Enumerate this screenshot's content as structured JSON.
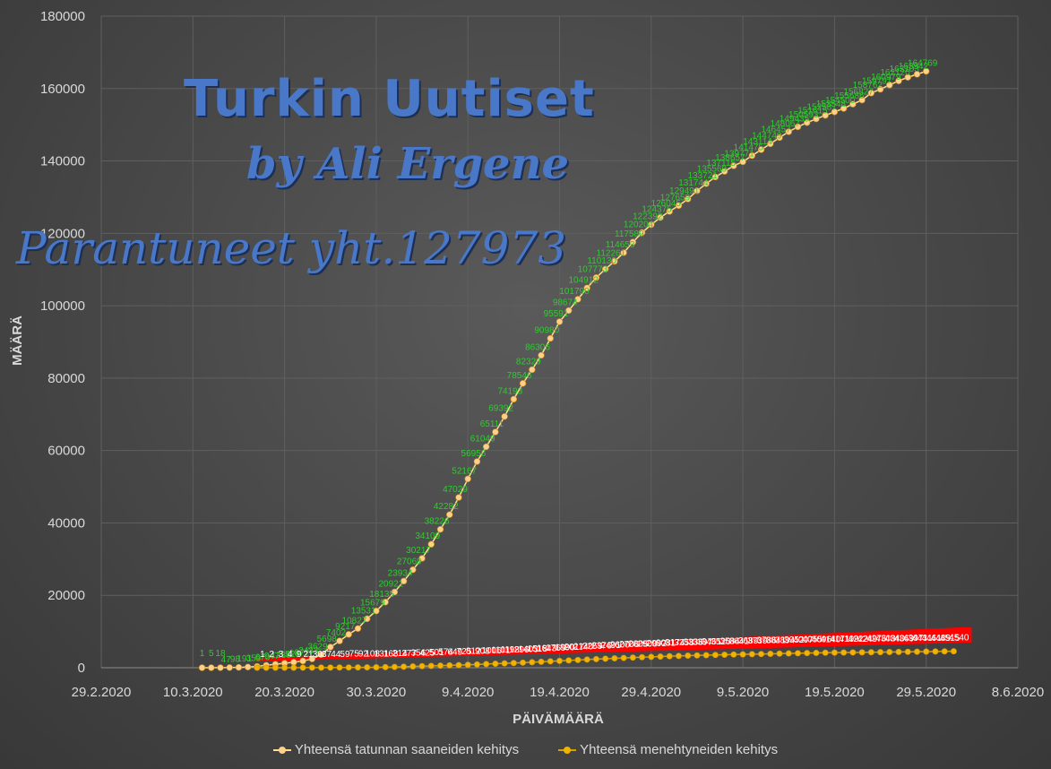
{
  "chart_data": {
    "type": "line",
    "xlabel": "PÄIVÄMÄÄRÄ",
    "ylabel": "MÄÄRÄ",
    "ylim": [
      0,
      180000
    ],
    "y_ticks": [
      "0",
      "20000",
      "40000",
      "60000",
      "80000",
      "100000",
      "120000",
      "140000",
      "160000",
      "180000"
    ],
    "x_ticks": [
      "29.2.2020",
      "10.3.2020",
      "20.3.2020",
      "30.3.2020",
      "9.4.2020",
      "19.4.2020",
      "29.4.2020",
      "9.5.2020",
      "19.5.2020",
      "29.5.2020",
      "8.6.2020"
    ],
    "x_start_date": "2020-02-29",
    "x_end_date": "2020-06-08",
    "grid": true,
    "legend_position": "bottom",
    "series": [
      {
        "name": "Yhteensä tatunnan saaneiden kehitys",
        "color": "#ffd08a",
        "label_color": "#2ecc2e",
        "start_date": "2020-03-11",
        "values": [
          1,
          5,
          18,
          47,
          98,
          191,
          359,
          670,
          947,
          1236,
          1529,
          1872,
          2433,
          3629,
          5698,
          7402,
          9217,
          10827,
          13531,
          15679,
          18135,
          20921,
          23934,
          27069,
          30217,
          34109,
          38226,
          42282,
          47029,
          52167,
          56956,
          61049,
          65111,
          69392,
          74193,
          78546,
          82329,
          86306,
          90980,
          95591,
          98674,
          101790,
          104912,
          107773,
          110130,
          112261,
          114653,
          117589,
          120204,
          122392,
          124375,
          126045,
          127659,
          129491,
          131744,
          133721,
          135569,
          137115,
          138657,
          139771,
          141475,
          143114,
          144749,
          146457,
          148067,
          149435,
          150593,
          151615,
          152587,
          153548,
          154500,
          155686,
          156827,
          158762,
          159797,
          160979,
          162120,
          163103,
          163942,
          164769
        ]
      },
      {
        "name": "Yhteensä menehtyneiden kehitys",
        "color": "#f0b400",
        "label_color": "#ffffff",
        "start_date": "2020-03-17",
        "values": [
          1,
          2,
          3,
          4,
          9,
          21,
          30,
          37,
          44,
          59,
          75,
          92,
          108,
          131,
          168,
          214,
          277,
          356,
          425,
          501,
          574,
          649,
          725,
          812,
          908,
          1006,
          1101,
          1198,
          1296,
          1403,
          1518,
          1643,
          1769,
          1890,
          2017,
          2140,
          2259,
          2376,
          2491,
          2600,
          2706,
          2805,
          2900,
          2992,
          3081,
          3174,
          3258,
          3336,
          3397,
          3461,
          3520,
          3584,
          3641,
          3689,
          3739,
          3786,
          3841,
          3894,
          3952,
          4007,
          4055,
          4096,
          4140,
          4171,
          4199,
          4222,
          4249,
          4276,
          4308,
          4340,
          4369,
          4397,
          4431,
          4461,
          4489,
          4515,
          4540
        ]
      }
    ]
  },
  "watermark": {
    "line1": "Turkin Uutiset",
    "line2": "by Ali Ergene",
    "line3": "Parantuneet yht.127973"
  },
  "legend": {
    "item1": "Yhteensä tatunnan saaneiden kehitys",
    "item2": "Yhteensä menehtyneiden kehitys"
  },
  "colors": {
    "background": "#474747",
    "grid": "#5f5f5f",
    "series1_line": "#ffe08a",
    "series2_line": "#d4a300",
    "label_box": "#ff0000"
  }
}
